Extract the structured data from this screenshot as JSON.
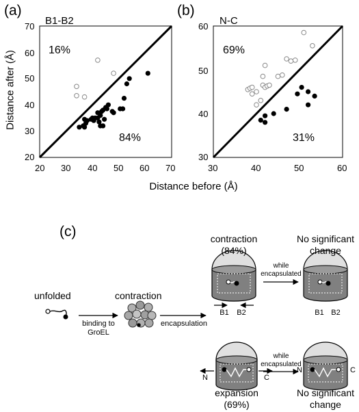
{
  "panels": {
    "a": "(a)",
    "b": "(b)",
    "c": "(c)"
  },
  "axis_labels": {
    "y": "Distance after (Å)",
    "x": "Distance before (Å)"
  },
  "chart_data": [
    {
      "type": "scatter",
      "title": "B1-B2",
      "xlim": [
        20,
        70
      ],
      "ylim": [
        20,
        70
      ],
      "xticks": [
        "20",
        "30",
        "40",
        "50",
        "60",
        "70"
      ],
      "yticks": [
        "20",
        "30",
        "40",
        "50",
        "60",
        "70"
      ],
      "annotations": {
        "upper": "16%",
        "lower": "84%"
      },
      "series": [
        {
          "marker": "open",
          "points": [
            [
              34,
              47
            ],
            [
              34,
              43.5
            ],
            [
              37,
              43
            ],
            [
              42,
              57
            ],
            [
              48,
              52
            ]
          ]
        },
        {
          "marker": "filled",
          "points": [
            [
              35,
              31.5
            ],
            [
              36.5,
              32
            ],
            [
              37,
              31.5
            ],
            [
              37,
              34.5
            ],
            [
              37.5,
              33
            ],
            [
              38,
              34
            ],
            [
              39.5,
              34.5
            ],
            [
              40,
              35
            ],
            [
              40.5,
              34
            ],
            [
              41,
              35
            ],
            [
              42,
              35
            ],
            [
              42,
              37
            ],
            [
              42.5,
              33.5
            ],
            [
              43,
              36
            ],
            [
              43,
              32
            ],
            [
              43.5,
              37.5
            ],
            [
              44,
              38
            ],
            [
              44,
              32
            ],
            [
              44.5,
              34.5
            ],
            [
              45,
              39
            ],
            [
              45.5,
              38.5
            ],
            [
              46,
              40
            ],
            [
              47.5,
              37.5
            ],
            [
              48,
              37
            ],
            [
              50.5,
              38.5
            ],
            [
              51.5,
              38.5
            ],
            [
              52,
              42.5
            ],
            [
              53,
              48
            ],
            [
              54,
              50
            ],
            [
              61,
              52
            ]
          ]
        }
      ]
    },
    {
      "type": "scatter",
      "title": "N-C",
      "xlim": [
        30,
        60
      ],
      "ylim": [
        30,
        60
      ],
      "xticks": [
        "30",
        "40",
        "50",
        "60"
      ],
      "yticks": [
        "30",
        "40",
        "50",
        "60"
      ],
      "annotations": {
        "upper": "69%",
        "lower": "31%"
      },
      "series": [
        {
          "marker": "open",
          "points": [
            [
              38,
              45.5
            ],
            [
              38.5,
              45.8
            ],
            [
              39,
              46
            ],
            [
              39,
              44.5
            ],
            [
              40,
              45
            ],
            [
              40,
              42
            ],
            [
              41,
              43
            ],
            [
              41.5,
              46.5
            ],
            [
              41.5,
              48.5
            ],
            [
              42,
              51
            ],
            [
              42,
              46
            ],
            [
              42.5,
              46.3
            ],
            [
              43,
              46.5
            ],
            [
              45,
              48.5
            ],
            [
              46,
              48.8
            ],
            [
              47,
              52.5
            ],
            [
              48,
              52
            ],
            [
              49,
              52.2
            ],
            [
              51,
              58.5
            ],
            [
              53,
              55.5
            ]
          ]
        },
        {
          "marker": "filled",
          "points": [
            [
              41,
              38.5
            ],
            [
              42,
              38
            ],
            [
              42,
              39.5
            ],
            [
              44,
              40
            ],
            [
              47,
              41
            ],
            [
              49.5,
              44.5
            ],
            [
              50.5,
              46
            ],
            [
              52,
              42
            ],
            [
              52,
              45
            ],
            [
              53.5,
              44
            ]
          ]
        }
      ]
    }
  ],
  "diagram": {
    "unfolded": "unfolded",
    "contraction": "contraction",
    "binding_line1": "binding to",
    "binding_line2": "GroEL",
    "encapsulation": "encapsulation",
    "contraction_top_line1": "contraction",
    "contraction_top_line2": "(84%)",
    "no_change_line1": "No significant",
    "no_change_line2": "change",
    "while_line1": "while",
    "while_line2": "encapsulated",
    "b1": "B1",
    "b2": "B2",
    "n": "N",
    "c": "C",
    "expansion_line1": "expansion",
    "expansion_line2": "(69%)"
  },
  "colors": {
    "filled_marker": "#000000",
    "open_marker_stroke": "#888888",
    "cylinder_fill": "#808080",
    "dome_fill": "#e0e0e0"
  }
}
